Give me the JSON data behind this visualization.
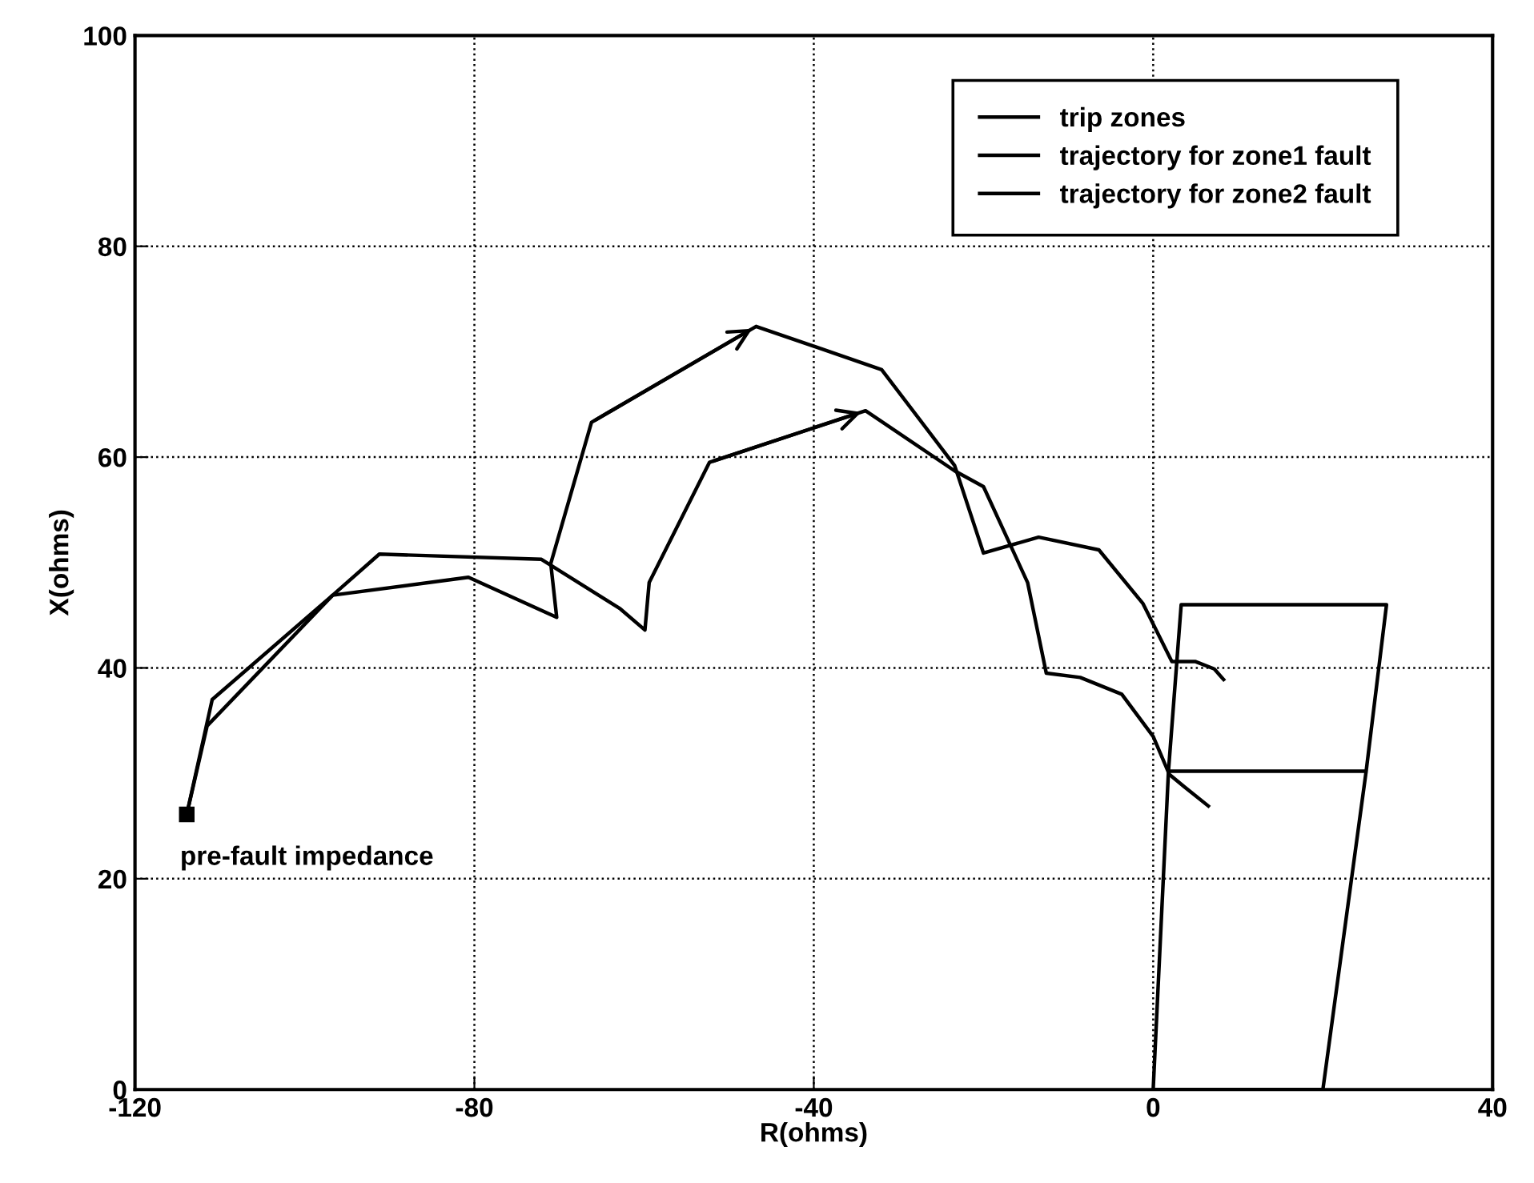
{
  "chart_data": {
    "type": "line",
    "xlabel": "R(ohms)",
    "ylabel": "X(ohms)",
    "xlim": [
      -120,
      40
    ],
    "xticks": [
      -120,
      -80,
      -40,
      0,
      40
    ],
    "ylim": [
      0,
      100
    ],
    "yticks": [
      0,
      20,
      40,
      60,
      80,
      100
    ],
    "grid": true,
    "legend": "top right",
    "marker": "none",
    "line_style": "solid",
    "series": [
      {
        "name": "trip zones",
        "color": "#000000",
        "x": [
          1.8,
          25.1,
          20,
          0,
          1.8,
          3.3,
          27.5,
          25.1
        ],
        "values": [
          30.2,
          30.2,
          0,
          0,
          30.2,
          46,
          46,
          30.2
        ]
      },
      {
        "name": "trajectory for zone1 fault",
        "color": "#000000",
        "x": [
          -113.9,
          -110.9,
          -96.7,
          -91.2,
          -72.1,
          -62.8,
          -59.9,
          -59.4,
          -52.3,
          -33.9,
          -23.4,
          -20,
          -14.8,
          -12.6,
          -8.6,
          -3.7,
          0,
          1.9,
          3.7,
          6.5
        ],
        "values": [
          26.1,
          37,
          46.9,
          50.8,
          50.3,
          45.6,
          43.6,
          48.1,
          59.5,
          64.4,
          58.7,
          57.2,
          48.1,
          39.5,
          39.1,
          37.5,
          33.5,
          29.9,
          28.7,
          26.9
        ]
      },
      {
        "name": "trajectory for zone2 fault",
        "color": "#000000",
        "x": [
          -113.9,
          -111.5,
          -96.7,
          -80.7,
          -70.3,
          -71,
          -66.2,
          -46.8,
          -32,
          -23.4,
          -20,
          -13.5,
          -6.4,
          -1.2,
          2.2,
          5,
          7.2,
          8.3
        ],
        "values": [
          26.1,
          34.5,
          46.9,
          48.6,
          44.8,
          49.9,
          63.3,
          72.4,
          68.3,
          59.2,
          50.9,
          52.4,
          51.2,
          46.1,
          40.6,
          40.6,
          39.9,
          38.9
        ]
      }
    ],
    "annotations": [
      {
        "text": "pre-fault impedance",
        "x": -113.9,
        "y": 26.1
      }
    ]
  }
}
